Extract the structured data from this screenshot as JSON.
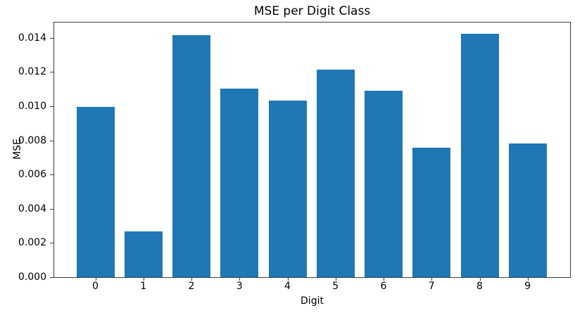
{
  "chart_data": {
    "type": "bar",
    "title": "MSE per Digit Class",
    "xlabel": "Digit",
    "ylabel": "MSE",
    "categories": [
      "0",
      "1",
      "2",
      "3",
      "4",
      "5",
      "6",
      "7",
      "8",
      "9"
    ],
    "values": [
      0.00997,
      0.00266,
      0.01417,
      0.01105,
      0.01033,
      0.01215,
      0.01089,
      0.00759,
      0.01424,
      0.00784
    ],
    "series_name": "MSE",
    "bar_color": "#1f77b4",
    "ylim": [
      0,
      0.0149
    ],
    "yticks": [
      0,
      0.002,
      0.004,
      0.006,
      0.008,
      0.01,
      0.012,
      0.014
    ],
    "ytick_labels": [
      "0.000",
      "0.002",
      "0.004",
      "0.006",
      "0.008",
      "0.010",
      "0.012",
      "0.014"
    ],
    "grid": false,
    "legend_position": "none"
  }
}
